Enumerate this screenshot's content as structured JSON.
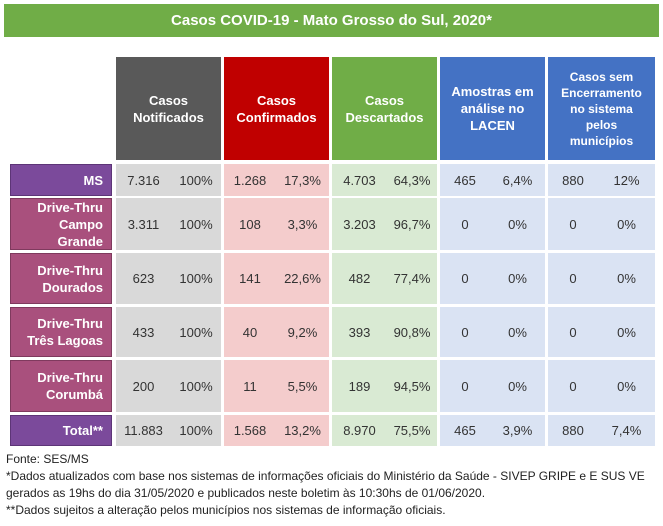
{
  "title": "Casos COVID-19 - Mato Grosso do Sul, 2020*",
  "headers": {
    "notificados": [
      "Casos",
      "Notificados"
    ],
    "confirmados": [
      "Casos",
      "Confirmados"
    ],
    "descartados": [
      "Casos",
      "Descartados"
    ],
    "amostras": [
      "Amostras em",
      "análise no",
      "LACEN"
    ],
    "sem_encerramento": [
      "Casos sem",
      "Encerramento",
      "no sistema",
      "pelos",
      "municípios"
    ]
  },
  "rows": [
    {
      "label": [
        "MS"
      ],
      "values": [
        "7.316",
        "100%",
        "1.268",
        "17,3%",
        "4.703",
        "64,3%",
        "465",
        "6,4%",
        "880",
        "12%"
      ]
    },
    {
      "label": [
        "Drive-Thru",
        "Campo Grande"
      ],
      "values": [
        "3.311",
        "100%",
        "108",
        "3,3%",
        "3.203",
        "96,7%",
        "0",
        "0%",
        "0",
        "0%"
      ]
    },
    {
      "label": [
        "Drive-Thru",
        "Dourados"
      ],
      "values": [
        "623",
        "100%",
        "141",
        "22,6%",
        "482",
        "77,4%",
        "0",
        "0%",
        "0",
        "0%"
      ]
    },
    {
      "label": [
        "Drive-Thru",
        "Três Lagoas"
      ],
      "values": [
        "433",
        "100%",
        "40",
        "9,2%",
        "393",
        "90,8%",
        "0",
        "0%",
        "0",
        "0%"
      ]
    },
    {
      "label": [
        "Drive-Thru",
        "Corumbá"
      ],
      "values": [
        "200",
        "100%",
        "11",
        "5,5%",
        "189",
        "94,5%",
        "0",
        "0%",
        "0",
        "0%"
      ]
    },
    {
      "label": [
        "Total**"
      ],
      "values": [
        "11.883",
        "100%",
        "1.568",
        "13,2%",
        "8.970",
        "75,5%",
        "465",
        "3,9%",
        "880",
        "7,4%"
      ]
    }
  ],
  "footer": {
    "source": "Fonte: SES/MS",
    "note1": "*Dados atualizados com base nos sistemas de informações oficiais do Ministério da Saúde - SIVEP GRIPE e E SUS VE gerados as 19hs do dia 31/05/2020 e publicados neste boletim às 10:30hs de 01/06/2020.",
    "note2": "**Dados sujeitos a alteração pelos municípios nos sistemas de informação oficiais."
  },
  "colors": {
    "title_bg": "#70ad47",
    "notificados": "#595959",
    "confirmados": "#c00000",
    "descartados": "#70ad47",
    "amostras": "#4472c4",
    "row_label": "#a9507d",
    "ms_total_label": "#7b4a9b"
  }
}
